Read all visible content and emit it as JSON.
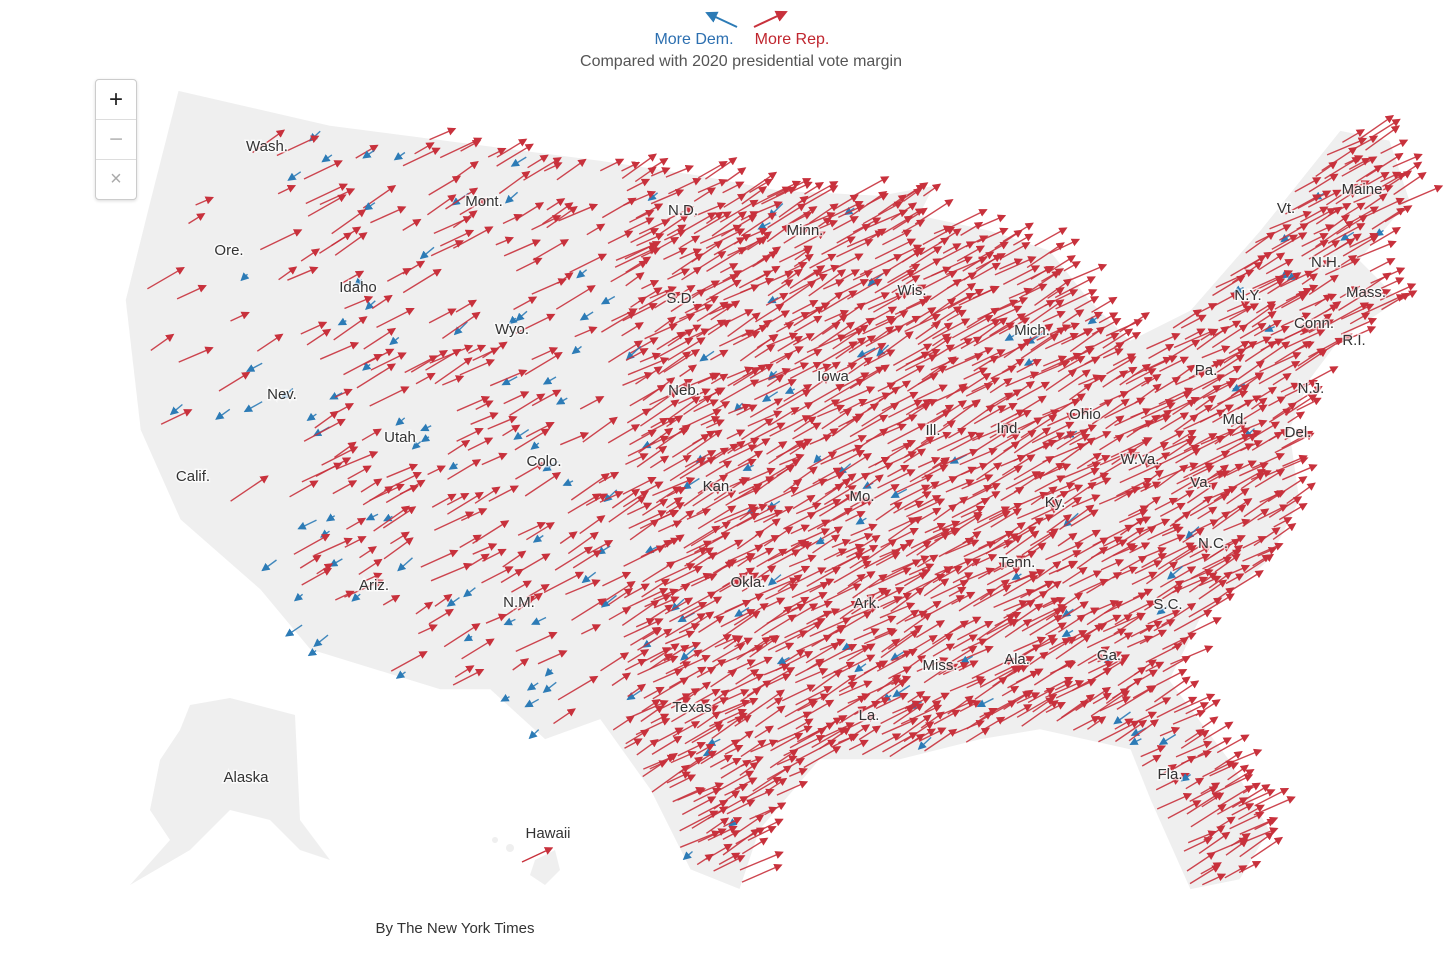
{
  "legend": {
    "dem": "More Dem.",
    "rep": "More Rep.",
    "subtitle": "Compared with 2020 presidential vote margin"
  },
  "controls": [
    "+",
    "−",
    "×"
  ],
  "states": [
    "Wash.",
    "Ore.",
    "Calif.",
    "Nev.",
    "Idaho",
    "Mont.",
    "Wyo.",
    "Utah",
    "Colo.",
    "Ariz.",
    "N.M.",
    "N.D.",
    "S.D.",
    "Neb.",
    "Kan.",
    "Okla.",
    "Texas",
    "Minn.",
    "Iowa",
    "Mo.",
    "Ark.",
    "La.",
    "Wis.",
    "Ill.",
    "Mich.",
    "Ind.",
    "Ohio",
    "Ky.",
    "Tenn.",
    "Miss.",
    "Ala.",
    "Ga.",
    "Fla.",
    "S.C.",
    "N.C.",
    "Va.",
    "W.Va.",
    "Pa.",
    "N.Y.",
    "Vt.",
    "Maine",
    "N.H.",
    "Mass.",
    "Conn.",
    "R.I.",
    "N.J.",
    "Md.",
    "Del.",
    "Alaska",
    "Hawaii"
  ],
  "credit": "By The New York Times"
}
